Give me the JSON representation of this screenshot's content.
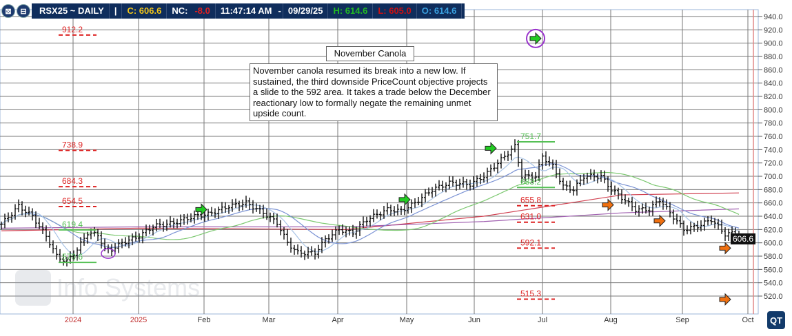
{
  "header": {
    "symbol": "RSX25 ~ DAILY",
    "sep": "|",
    "close": "C: 606.6",
    "nc_label": "NC:",
    "nc": "-8.0",
    "time": "11:47:14 AM",
    "dash": "-",
    "date": "09/29/25",
    "high": "H: 614.6",
    "low": "L: 605.0",
    "open": "O: 614.6",
    "icons": [
      "close-window-icon",
      "minimize-window-icon"
    ]
  },
  "colors": {
    "header_bg": "#0f2d5c",
    "close": "#f0c419",
    "nc": "#e02020",
    "high": "#22bb22",
    "low": "#cc1111",
    "open": "#3aa0e0",
    "target_up": "#dd2222",
    "target_down": "#55c055",
    "arrow_green": "#22cc22",
    "arrow_orange": "#f07010",
    "circle": "#9933cc"
  },
  "note": {
    "title": "November Canola",
    "text": "November canola resumed its break into a new low. If sustained, the third downside PriceCount objective projects a slide to the 592 area. It takes a trade below the December reactionary low to formally negate the remaining unmet upside count."
  },
  "watermark": "Info Systems",
  "logo": "QT",
  "last_price": "606.6",
  "chart_data": {
    "type": "ohlc",
    "ylim": [
      510,
      950
    ],
    "y_ticks": [
      "940.0",
      "920.0",
      "900.0",
      "880.0",
      "860.0",
      "840.0",
      "820.0",
      "800.0",
      "780.0",
      "760.0",
      "740.0",
      "720.0",
      "700.0",
      "680.0",
      "660.0",
      "640.0",
      "620.0",
      "600.0",
      "580.0",
      "560.0",
      "540.0",
      "520.0"
    ],
    "x_ticks": [
      "2024",
      "2025",
      "Feb",
      "Mar",
      "Apr",
      "May",
      "Jun",
      "Jul",
      "Aug",
      "Sep",
      "Oct"
    ],
    "grid": true,
    "price_path": [
      [
        0,
        628
      ],
      [
        5,
        655
      ],
      [
        9,
        640
      ],
      [
        13,
        610
      ],
      [
        16,
        580
      ],
      [
        19,
        572
      ],
      [
        22,
        590
      ],
      [
        25,
        615
      ],
      [
        28,
        612
      ],
      [
        30,
        590
      ],
      [
        32,
        590
      ],
      [
        35,
        600
      ],
      [
        40,
        610
      ],
      [
        44,
        625
      ],
      [
        50,
        630
      ],
      [
        56,
        640
      ],
      [
        60,
        643
      ],
      [
        66,
        655
      ],
      [
        71,
        660
      ],
      [
        76,
        645
      ],
      [
        80,
        630
      ],
      [
        83,
        600
      ],
      [
        86,
        585
      ],
      [
        91,
        585
      ],
      [
        94,
        605
      ],
      [
        98,
        620
      ],
      [
        102,
        615
      ],
      [
        106,
        635
      ],
      [
        112,
        650
      ],
      [
        116,
        648
      ],
      [
        120,
        660
      ],
      [
        125,
        680
      ],
      [
        130,
        690
      ],
      [
        136,
        688
      ],
      [
        140,
        700
      ],
      [
        144,
        720
      ],
      [
        149,
        745
      ],
      [
        151,
        700
      ],
      [
        155,
        700
      ],
      [
        157,
        730
      ],
      [
        160,
        715
      ],
      [
        163,
        685
      ],
      [
        166,
        680
      ],
      [
        169,
        700
      ],
      [
        174,
        700
      ],
      [
        177,
        680
      ],
      [
        180,
        668
      ],
      [
        184,
        650
      ],
      [
        188,
        650
      ],
      [
        191,
        665
      ],
      [
        194,
        645
      ],
      [
        198,
        620
      ],
      [
        202,
        625
      ],
      [
        206,
        635
      ],
      [
        210,
        613
      ],
      [
        213,
        615
      ],
      [
        214,
        606.6
      ]
    ],
    "long_averages": [
      {
        "color": "#d04050",
        "values": [
          [
            0,
            618
          ],
          [
            40,
            622
          ],
          [
            100,
            620
          ],
          [
            140,
            640
          ],
          [
            180,
            672
          ],
          [
            214,
            675
          ]
        ]
      },
      {
        "color": "#a060b0",
        "values": [
          [
            0,
            622
          ],
          [
            40,
            624
          ],
          [
            100,
            624
          ],
          [
            140,
            632
          ],
          [
            180,
            645
          ],
          [
            214,
            651
          ]
        ]
      }
    ],
    "targets": [
      {
        "label": "912.2",
        "value": 912.2,
        "dir": "up",
        "side": "left"
      },
      {
        "label": "738.9",
        "value": 738.9,
        "dir": "up",
        "side": "left"
      },
      {
        "label": "684.3",
        "value": 684.3,
        "dir": "up",
        "side": "left"
      },
      {
        "label": "654.5",
        "value": 654.5,
        "dir": "up",
        "side": "left"
      },
      {
        "label": "619.4",
        "value": 619.4,
        "dir": "down",
        "side": "left"
      },
      {
        "label": "570.6",
        "value": 570.6,
        "dir": "down",
        "side": "left"
      },
      {
        "label": "751.7",
        "value": 751.7,
        "dir": "down",
        "side": "right"
      },
      {
        "label": "683.2",
        "value": 683.2,
        "dir": "down",
        "side": "right"
      },
      {
        "label": "655.8",
        "value": 655.8,
        "dir": "up",
        "side": "right"
      },
      {
        "label": "631.0",
        "value": 631.0,
        "dir": "up",
        "side": "right"
      },
      {
        "label": "592.1",
        "value": 592.1,
        "dir": "up",
        "side": "right"
      },
      {
        "label": "515.3",
        "value": 515.3,
        "dir": "up",
        "side": "right"
      }
    ],
    "arrows": [
      {
        "bar": 58,
        "value": 650,
        "color": "green"
      },
      {
        "bar": 117,
        "value": 665,
        "color": "green"
      },
      {
        "bar": 142,
        "value": 742,
        "color": "green"
      },
      {
        "bar": 155,
        "value": 907,
        "color": "green",
        "circled": true
      },
      {
        "bar": 176,
        "value": 657,
        "color": "orange"
      },
      {
        "bar": 191,
        "value": 633,
        "color": "orange"
      },
      {
        "bar": 210,
        "value": 592,
        "color": "orange"
      },
      {
        "bar": 210,
        "value": 515,
        "color": "orange"
      }
    ],
    "circles": [
      {
        "bar": 31,
        "value": 584
      }
    ]
  }
}
